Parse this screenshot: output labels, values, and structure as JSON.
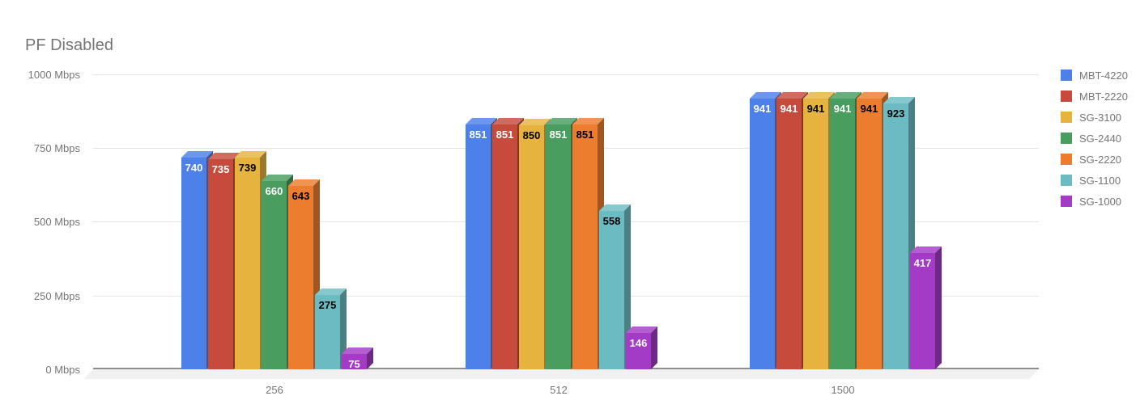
{
  "title": "PF Disabled",
  "chart_data": {
    "type": "bar",
    "subtype": "3d-column",
    "title": "PF Disabled",
    "categories": [
      "256",
      "512",
      "1500"
    ],
    "series": [
      {
        "name": "MBT-4220",
        "color": "#4d80e8",
        "label_color": "#ffffff",
        "values": [
          740,
          851,
          941
        ]
      },
      {
        "name": "MBT-2220",
        "color": "#c64b3d",
        "label_color": "#ffffff",
        "values": [
          735,
          851,
          941
        ]
      },
      {
        "name": "SG-3100",
        "color": "#e6b43e",
        "label_color": "#000000",
        "values": [
          739,
          850,
          941
        ]
      },
      {
        "name": "SG-2440",
        "color": "#489d5f",
        "label_color": "#ffffff",
        "values": [
          660,
          851,
          941
        ]
      },
      {
        "name": "SG-2220",
        "color": "#ed7d2e",
        "label_color": "#000000",
        "values": [
          643,
          851,
          941
        ]
      },
      {
        "name": "SG-1100",
        "color": "#6bbcc2",
        "label_color": "#000000",
        "values": [
          275,
          558,
          923
        ]
      },
      {
        "name": "SG-1000",
        "color": "#a33bc7",
        "label_color": "#ffffff",
        "values": [
          75,
          146,
          417
        ]
      }
    ],
    "ylabel_unit": "Mbps",
    "ytick_values": [
      0,
      250,
      500,
      750,
      1000
    ],
    "ytick_labels": [
      "0 Mbps",
      "250 Mbps",
      "500 Mbps",
      "750 Mbps",
      "1000 Mbps"
    ],
    "ylim": [
      0,
      1000
    ],
    "grid": true,
    "legend_position": "right",
    "colors": {
      "axis_text": "#757575",
      "title_text": "#757575",
      "gridline": "#e3e3e3",
      "baseline": "#8f8f8f",
      "floor": "#f1f1f1",
      "background": "#ffffff"
    }
  }
}
